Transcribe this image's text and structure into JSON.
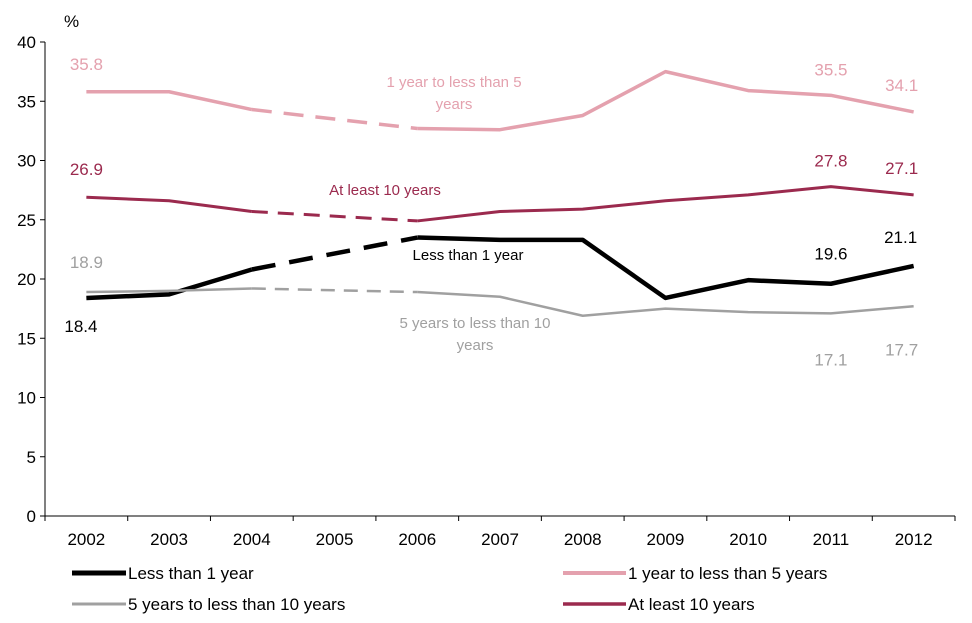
{
  "chart_data": {
    "type": "line",
    "title": "",
    "xlabel": "",
    "ylabel": "%",
    "ylim": [
      0,
      40
    ],
    "yticks": [
      "0",
      "5",
      "10",
      "15",
      "20",
      "25",
      "30",
      "35",
      "40"
    ],
    "categories": [
      "2002",
      "2003",
      "2004",
      "2005",
      "2006",
      "2007",
      "2008",
      "2009",
      "2010",
      "2011",
      "2012"
    ],
    "grid": false,
    "legend_position": "bottom",
    "dashed_segment": {
      "from": "2004",
      "to": "2006"
    },
    "series": [
      {
        "name": "Less than 1 year",
        "color": "#000000",
        "values": [
          18.4,
          18.7,
          20.8,
          null,
          23.5,
          23.3,
          23.3,
          18.4,
          19.9,
          19.6,
          21.1
        ],
        "inline_label": "Less than 1 year",
        "data_labels": {
          "2002": "18.4",
          "2011": "19.6",
          "2012": "21.1"
        }
      },
      {
        "name": "1 year to less than 5 years",
        "color": "#e4a1ae",
        "values": [
          35.8,
          35.8,
          34.3,
          null,
          32.7,
          32.6,
          33.8,
          37.5,
          35.9,
          35.5,
          34.1
        ],
        "inline_label_lines": [
          "1 year to less than 5",
          "years"
        ],
        "data_labels": {
          "2002": "35.8",
          "2011": "35.5",
          "2012": "34.1"
        }
      },
      {
        "name": "5 years to less than 10 years",
        "color": "#a0a0a0",
        "values": [
          18.9,
          19.0,
          19.2,
          null,
          18.9,
          18.5,
          16.9,
          17.5,
          17.2,
          17.1,
          17.7
        ],
        "inline_label_lines": [
          "5 years to less than 10",
          "years"
        ],
        "data_labels": {
          "2002": "18.9",
          "2011": "17.1",
          "2012": "17.7"
        }
      },
      {
        "name": "At least 10 years",
        "color": "#9b2a4e",
        "values": [
          26.9,
          26.6,
          25.7,
          null,
          24.9,
          25.7,
          25.9,
          26.6,
          27.1,
          27.8,
          27.1
        ],
        "inline_label": "At least 10 years",
        "data_labels": {
          "2002": "26.9",
          "2011": "27.8",
          "2012": "27.1"
        }
      }
    ]
  }
}
